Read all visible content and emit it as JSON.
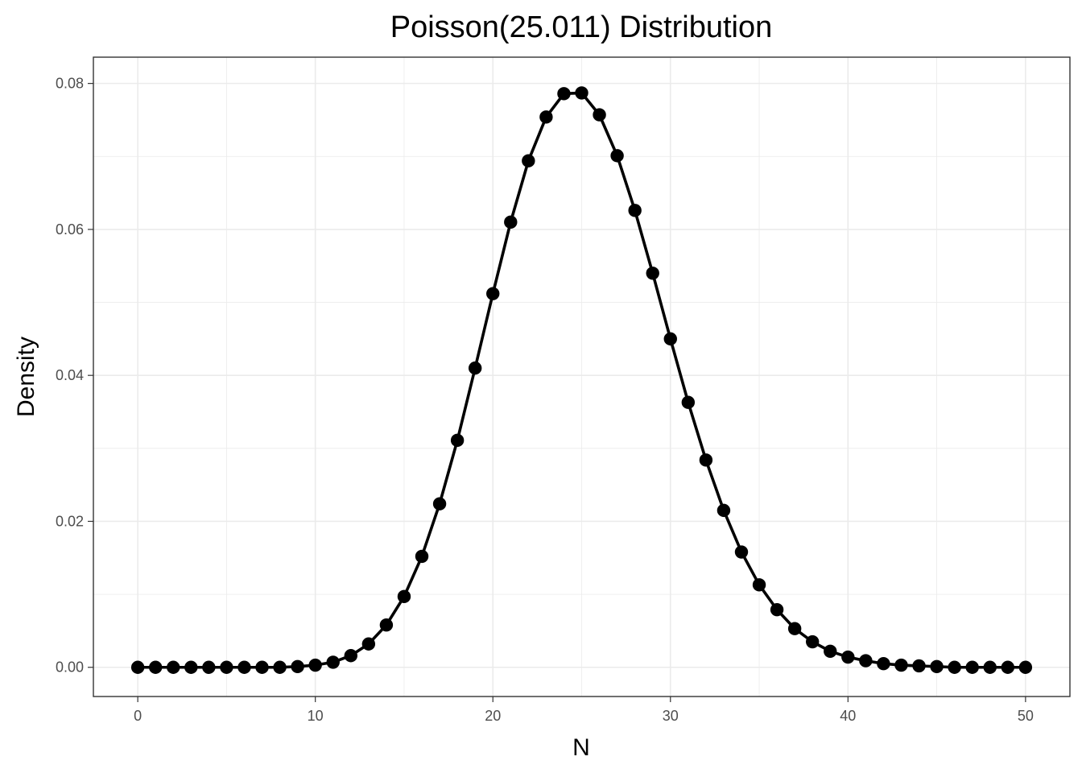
{
  "chart_data": {
    "type": "line",
    "title": "Poisson(25.011) Distribution",
    "xlabel": "N",
    "ylabel": "Density",
    "xlim": [
      -2.5,
      52.5
    ],
    "ylim": [
      -0.004,
      0.0836
    ],
    "x_ticks": [
      0,
      10,
      20,
      30,
      40,
      50
    ],
    "x_tick_labels": [
      "0",
      "10",
      "20",
      "30",
      "40",
      "50"
    ],
    "y_ticks": [
      0,
      0.02,
      0.04,
      0.06,
      0.08
    ],
    "y_tick_labels": [
      "0.00",
      "0.02",
      "0.04",
      "0.06",
      "0.08"
    ],
    "grid": true,
    "markers": true,
    "series": [
      {
        "x": [
          0,
          1,
          2,
          3,
          4,
          5,
          6,
          7,
          8,
          9,
          10,
          11,
          12,
          13,
          14,
          15,
          16,
          17,
          18,
          19,
          20,
          21,
          22,
          23,
          24,
          25,
          26,
          27,
          28,
          29,
          30,
          31,
          32,
          33,
          34,
          35,
          36,
          37,
          38,
          39,
          40,
          41,
          42,
          43,
          44,
          45,
          46,
          47,
          48,
          49,
          50
        ],
        "values": [
          0.0,
          0.0,
          0.0,
          0.0,
          0.0,
          0.0,
          0.0,
          0.0,
          0.0,
          0.0001,
          0.0003,
          0.0007,
          0.0016,
          0.0032,
          0.0058,
          0.0097,
          0.0152,
          0.0224,
          0.0311,
          0.041,
          0.0512,
          0.061,
          0.0694,
          0.0754,
          0.0786,
          0.0787,
          0.0757,
          0.0701,
          0.0626,
          0.054,
          0.045,
          0.0363,
          0.0284,
          0.0215,
          0.0158,
          0.0113,
          0.0079,
          0.0053,
          0.0035,
          0.0022,
          0.0014,
          0.0009,
          0.0005,
          0.0003,
          0.0002,
          0.0001,
          0.0,
          0.0,
          0.0,
          0.0,
          0.0
        ]
      }
    ]
  },
  "colors": {
    "series": "#000000",
    "grid": "#ebebeb",
    "panel_border": "#333333",
    "tick_label": "#4d4d4d",
    "background": "#ffffff"
  }
}
